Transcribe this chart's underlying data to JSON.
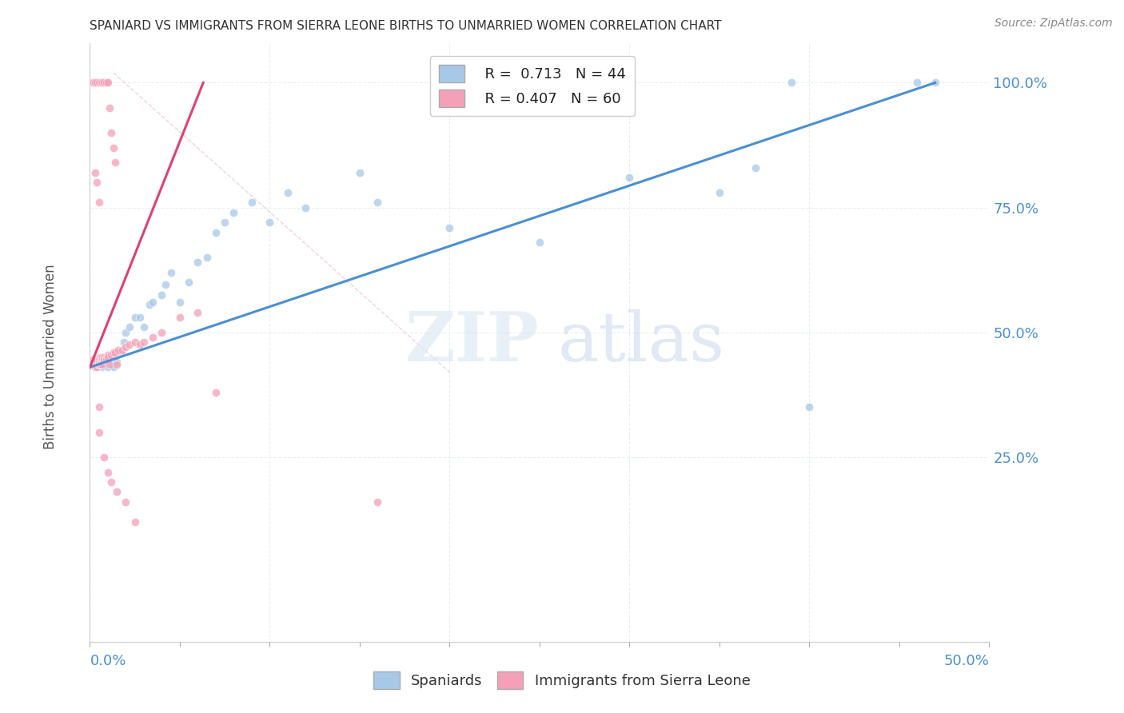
{
  "title": "SPANIARD VS IMMIGRANTS FROM SIERRA LEONE BIRTHS TO UNMARRIED WOMEN CORRELATION CHART",
  "source": "Source: ZipAtlas.com",
  "ylabel_axis_label": "Births to Unmarried Women",
  "legend_blue_r": "R =  0.713",
  "legend_blue_n": "N = 44",
  "legend_pink_r": "R = 0.407",
  "legend_pink_n": "N = 60",
  "legend_blue_short": "Spaniards",
  "legend_pink_short": "Immigrants from Sierra Leone",
  "watermark_zip": "ZIP",
  "watermark_atlas": "atlas",
  "xlim": [
    0.0,
    0.5
  ],
  "ylim_data_min": -0.12,
  "ylim_data_max": 1.08,
  "ylabel_values": [
    0.25,
    0.5,
    0.75,
    1.0
  ],
  "blue_scatter_x": [
    0.003,
    0.004,
    0.005,
    0.006,
    0.007,
    0.008,
    0.009,
    0.01,
    0.012,
    0.013,
    0.015,
    0.017,
    0.019,
    0.02,
    0.022,
    0.025,
    0.028,
    0.03,
    0.033,
    0.035,
    0.04,
    0.042,
    0.045,
    0.05,
    0.055,
    0.06,
    0.065,
    0.07,
    0.075,
    0.08,
    0.09,
    0.1,
    0.11,
    0.12,
    0.15,
    0.16,
    0.2,
    0.25,
    0.3,
    0.35,
    0.37,
    0.4,
    0.46,
    0.47
  ],
  "blue_scatter_y": [
    0.435,
    0.43,
    0.44,
    0.445,
    0.43,
    0.435,
    0.44,
    0.43,
    0.435,
    0.43,
    0.44,
    0.46,
    0.48,
    0.5,
    0.51,
    0.53,
    0.53,
    0.51,
    0.555,
    0.56,
    0.575,
    0.595,
    0.62,
    0.56,
    0.6,
    0.64,
    0.65,
    0.7,
    0.72,
    0.74,
    0.76,
    0.72,
    0.78,
    0.75,
    0.82,
    0.76,
    0.71,
    0.68,
    0.81,
    0.78,
    0.83,
    0.35,
    1.0,
    1.0
  ],
  "pink_scatter_x": [
    0.001,
    0.001,
    0.001,
    0.002,
    0.002,
    0.002,
    0.002,
    0.003,
    0.003,
    0.003,
    0.003,
    0.003,
    0.004,
    0.004,
    0.004,
    0.004,
    0.005,
    0.005,
    0.005,
    0.005,
    0.005,
    0.006,
    0.006,
    0.006,
    0.006,
    0.007,
    0.007,
    0.007,
    0.008,
    0.008,
    0.009,
    0.009,
    0.01,
    0.01,
    0.011,
    0.012,
    0.013,
    0.014,
    0.015,
    0.016,
    0.018,
    0.02,
    0.022,
    0.025,
    0.028,
    0.03,
    0.035,
    0.04,
    0.05,
    0.06,
    0.005,
    0.005,
    0.008,
    0.01,
    0.012,
    0.015,
    0.02,
    0.025,
    0.07,
    0.16
  ],
  "pink_scatter_y": [
    0.435,
    0.44,
    0.445,
    0.435,
    0.44,
    0.445,
    0.435,
    0.44,
    0.435,
    0.43,
    0.445,
    0.435,
    0.44,
    0.435,
    0.445,
    0.43,
    0.45,
    0.445,
    0.435,
    0.44,
    0.435,
    0.45,
    0.445,
    0.44,
    0.435,
    0.445,
    0.45,
    0.435,
    0.45,
    0.445,
    0.45,
    0.445,
    0.455,
    0.45,
    0.435,
    0.455,
    0.46,
    0.46,
    0.435,
    0.465,
    0.465,
    0.47,
    0.475,
    0.48,
    0.475,
    0.48,
    0.49,
    0.5,
    0.53,
    0.54,
    0.35,
    0.3,
    0.25,
    0.22,
    0.2,
    0.18,
    0.16,
    0.12,
    0.38,
    0.16
  ],
  "pink_top_x": [
    0.001,
    0.002,
    0.003,
    0.004,
    0.005,
    0.006,
    0.007,
    0.008,
    0.009,
    0.01,
    0.011,
    0.012,
    0.013,
    0.014,
    0.003,
    0.004,
    0.005
  ],
  "pink_top_y": [
    1.0,
    1.0,
    1.0,
    1.0,
    1.0,
    1.0,
    1.0,
    1.0,
    1.0,
    1.0,
    0.95,
    0.9,
    0.87,
    0.84,
    0.82,
    0.8,
    0.76
  ],
  "blue_top_x": [
    0.003,
    0.004,
    0.005,
    0.006,
    0.007,
    0.008,
    0.39
  ],
  "blue_top_y": [
    1.0,
    1.0,
    1.0,
    1.0,
    1.0,
    1.0,
    1.0
  ],
  "blue_color": "#a8c8e8",
  "pink_color": "#f4a0b8",
  "blue_line_color": "#4a8fd4",
  "pink_line_color": "#e04070",
  "dash_color": "#d0d8e8",
  "title_color": "#333333",
  "tick_label_color": "#4a8fd4",
  "grid_color": "#e8eef4",
  "scatter_alpha": 0.75,
  "scatter_size": 55,
  "blue_line_x0": 0.0,
  "blue_line_y0": 0.43,
  "blue_line_x1": 0.47,
  "blue_line_y1": 1.0,
  "pink_line_x0": 0.0,
  "pink_line_y0": 0.43,
  "pink_line_x1": 0.063,
  "pink_line_y1": 1.0
}
